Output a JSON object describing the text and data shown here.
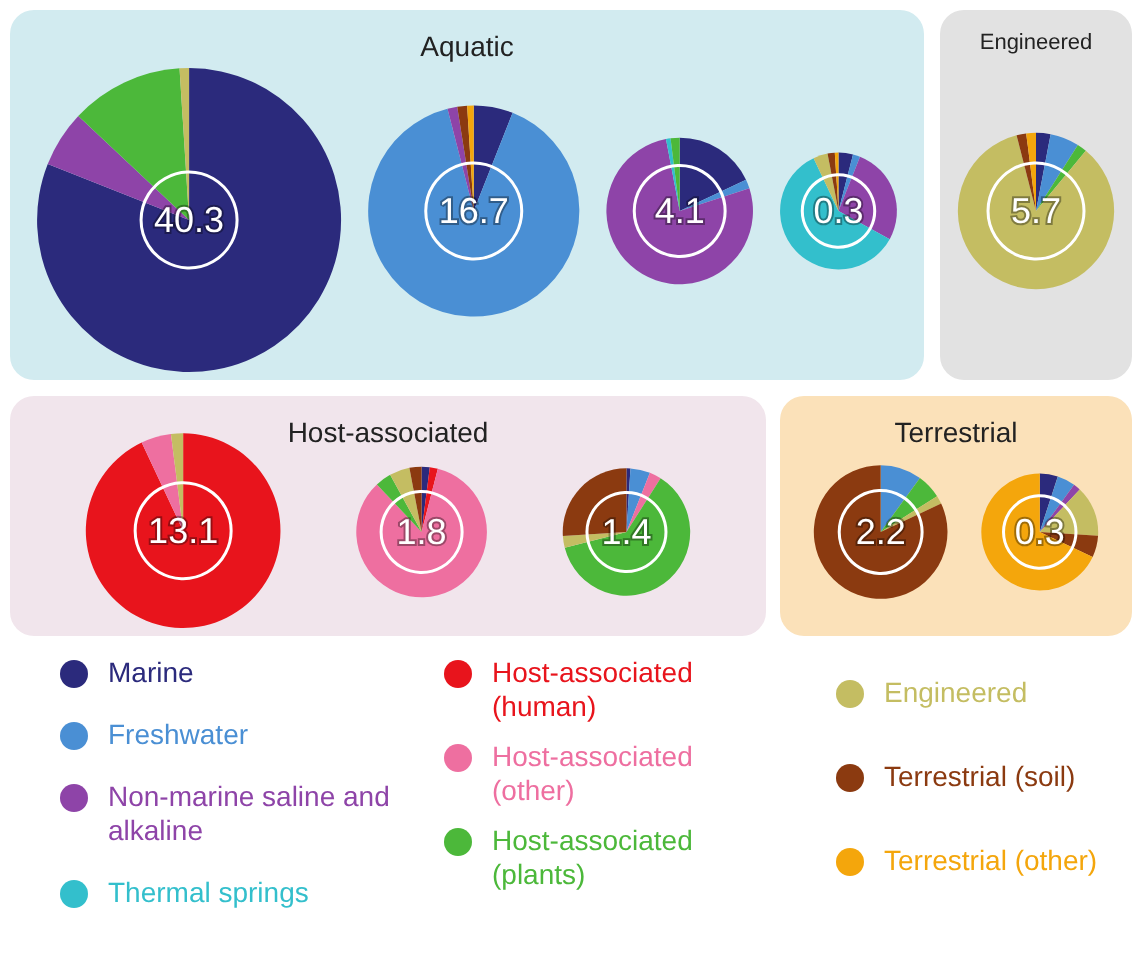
{
  "chart_data": [
    {
      "type": "pie",
      "title": "Aquatic",
      "legend": "bottom",
      "categories": [
        "Marine",
        "Freshwater",
        "Non-marine saline and alkaline",
        "Thermal springs",
        "Host-associated (human)",
        "Host-associated (other)",
        "Host-associated (plants)",
        "Engineered",
        "Terrestrial (soil)",
        "Terrestrial (other)"
      ],
      "colors": [
        "#2b2a7c",
        "#4a8fd4",
        "#8e44a8",
        "#33bfcc",
        "#e8141c",
        "#ee6fa0",
        "#4cb83a",
        "#c4bd62",
        "#8b3a10",
        "#f4a60c"
      ],
      "series": [
        {
          "values": [
            81,
            0,
            6,
            0,
            0,
            0,
            12,
            1,
            0,
            0
          ]
        },
        {
          "values": [
            6,
            90,
            1.5,
            0,
            0,
            0,
            0,
            0,
            1.5,
            1
          ]
        },
        {
          "values": [
            18,
            2,
            77,
            1,
            0,
            0,
            2,
            0,
            0,
            0
          ]
        },
        {
          "values": [
            4,
            2,
            27,
            60,
            0,
            0,
            0,
            4,
            2,
            1
          ]
        }
      ],
      "annotations": [
        "40.3",
        "16.7",
        "4.1",
        "0.3"
      ]
    },
    {
      "type": "pie",
      "title": "Engineered",
      "series": [
        {
          "values": [
            3,
            6,
            0,
            0,
            0,
            0,
            2,
            85,
            2,
            2
          ],
          "colors": [
            "#2b2a7c",
            "#4a8fd4",
            "#8e44a8",
            "#33bfcc",
            "#e8141c",
            "#ee6fa0",
            "#4cb83a",
            "#c4bd62",
            "#8b3a10",
            "#f4a60c"
          ]
        }
      ],
      "annotations": [
        "5.7"
      ]
    },
    {
      "type": "pie",
      "title": "Host-associated",
      "series": [
        {
          "values": [
            0,
            0,
            0,
            0,
            93,
            5,
            0,
            2,
            0,
            0
          ],
          "colors": [
            "#2b2a7c",
            "#4a8fd4",
            "#8e44a8",
            "#33bfcc",
            "#e8141c",
            "#ee6fa0",
            "#4cb83a",
            "#c4bd62",
            "#8b3a10",
            "#f4a60c"
          ]
        },
        {
          "values": [
            2,
            0,
            0,
            0,
            2,
            84,
            4,
            5,
            3,
            0
          ],
          "colors": [
            "#2b2a7c",
            "#4a8fd4",
            "#8e44a8",
            "#33bfcc",
            "#e8141c",
            "#ee6fa0",
            "#4cb83a",
            "#c4bd62",
            "#8b3a10",
            "#f4a60c"
          ]
        },
        {
          "values": [
            1,
            5,
            0,
            0,
            0,
            3,
            62,
            3,
            26,
            0
          ],
          "colors": [
            "#2b2a7c",
            "#4a8fd4",
            "#8e44a8",
            "#33bfcc",
            "#e8141c",
            "#ee6fa0",
            "#4cb83a",
            "#c4bd62",
            "#8b3a10",
            "#f4a60c"
          ]
        }
      ],
      "annotations": [
        "13.1",
        "1.8",
        "1.4"
      ]
    },
    {
      "type": "pie",
      "title": "Terrestrial",
      "series": [
        {
          "values": [
            0,
            10,
            0,
            0,
            0,
            0,
            6,
            2,
            82,
            0
          ],
          "colors": [
            "#2b2a7c",
            "#4a8fd4",
            "#8e44a8",
            "#33bfcc",
            "#e8141c",
            "#ee6fa0",
            "#4cb83a",
            "#c4bd62",
            "#8b3a10",
            "#f4a60c"
          ]
        },
        {
          "values": [
            5,
            5,
            2,
            0,
            0,
            0,
            0,
            14,
            6,
            68
          ],
          "colors": [
            "#2b2a7c",
            "#4a8fd4",
            "#8e44a8",
            "#33bfcc",
            "#e8141c",
            "#ee6fa0",
            "#4cb83a",
            "#c4bd62",
            "#8b3a10",
            "#f4a60c"
          ]
        }
      ],
      "annotations": [
        "2.2",
        "0.3"
      ]
    }
  ]
}
